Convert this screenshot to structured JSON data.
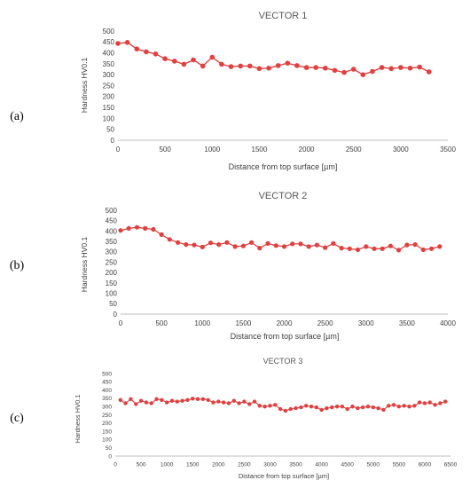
{
  "chart_data": [
    {
      "type": "line",
      "panel_label": "(a)",
      "title": "VECTOR 1",
      "xlabel": "Distance from top surface [µm]",
      "ylabel": "Hardness HV0.1",
      "xlim": [
        0,
        3500
      ],
      "ylim": [
        0,
        500
      ],
      "xticks": [
        0,
        500,
        1000,
        1500,
        2000,
        2500,
        3000,
        3500
      ],
      "yticks": [
        0,
        50,
        100,
        150,
        200,
        250,
        300,
        350,
        400,
        450,
        500
      ],
      "grid": false,
      "color": "#e04040",
      "series": [
        {
          "x": [
            0,
            100,
            200,
            300,
            400,
            500,
            600,
            700,
            800,
            900,
            1000,
            1100,
            1200,
            1300,
            1400,
            1500,
            1600,
            1700,
            1800,
            1900,
            2000,
            2100,
            2200,
            2300,
            2400,
            2500,
            2600,
            2700,
            2800,
            2900,
            3000,
            3100,
            3200,
            3300
          ],
          "y": [
            443,
            448,
            418,
            405,
            395,
            373,
            362,
            348,
            368,
            340,
            380,
            348,
            337,
            340,
            340,
            328,
            330,
            342,
            353,
            342,
            333,
            333,
            330,
            320,
            310,
            325,
            300,
            315,
            333,
            328,
            333,
            330,
            335,
            313
          ]
        }
      ]
    },
    {
      "type": "line",
      "panel_label": "(b)",
      "title": "VECTOR 2",
      "xlabel": "Distance from top surface [µm]",
      "ylabel": "Hardness HV0.1",
      "xlim": [
        0,
        4000
      ],
      "ylim": [
        0,
        500
      ],
      "xticks": [
        0,
        500,
        1000,
        1500,
        2000,
        2500,
        3000,
        3500,
        4000
      ],
      "yticks": [
        0,
        50,
        100,
        150,
        200,
        250,
        300,
        350,
        400,
        450,
        500
      ],
      "grid": false,
      "color": "#e04040",
      "series": [
        {
          "x": [
            0,
            100,
            200,
            300,
            400,
            500,
            600,
            700,
            800,
            900,
            1000,
            1100,
            1200,
            1300,
            1400,
            1500,
            1600,
            1700,
            1800,
            1900,
            2000,
            2100,
            2200,
            2300,
            2400,
            2500,
            2600,
            2700,
            2800,
            2900,
            3000,
            3100,
            3200,
            3300,
            3400,
            3500,
            3600,
            3700,
            3800,
            3900
          ],
          "y": [
            403,
            413,
            418,
            413,
            408,
            383,
            360,
            345,
            335,
            333,
            323,
            343,
            335,
            345,
            325,
            328,
            345,
            318,
            340,
            330,
            325,
            338,
            338,
            325,
            333,
            320,
            340,
            318,
            315,
            310,
            325,
            315,
            315,
            328,
            308,
            333,
            335,
            310,
            315,
            325
          ]
        }
      ]
    },
    {
      "type": "line",
      "panel_label": "(c)",
      "title": "VECTOR 3",
      "xlabel": "Distance from top surface [µm]",
      "ylabel": "Hardness HV0.1",
      "xlim": [
        0,
        6500
      ],
      "ylim": [
        0,
        500
      ],
      "xticks": [
        0,
        500,
        1000,
        1500,
        2000,
        2500,
        3000,
        3500,
        4000,
        4500,
        5000,
        5500,
        6000,
        6500
      ],
      "yticks": [
        0,
        50,
        100,
        150,
        200,
        250,
        300,
        350,
        400,
        450,
        500
      ],
      "grid": false,
      "color": "#e04040",
      "series": [
        {
          "x": [
            100,
            200,
            300,
            400,
            500,
            600,
            700,
            800,
            900,
            1000,
            1100,
            1200,
            1300,
            1400,
            1500,
            1600,
            1700,
            1800,
            1900,
            2000,
            2100,
            2200,
            2300,
            2400,
            2500,
            2600,
            2700,
            2800,
            2900,
            3000,
            3100,
            3200,
            3300,
            3400,
            3500,
            3600,
            3700,
            3800,
            3900,
            4000,
            4100,
            4200,
            4300,
            4400,
            4500,
            4600,
            4700,
            4800,
            4900,
            5000,
            5100,
            5200,
            5300,
            5400,
            5500,
            5600,
            5700,
            5800,
            5900,
            6000,
            6100,
            6200,
            6300,
            6400
          ],
          "y": [
            340,
            320,
            345,
            315,
            335,
            325,
            320,
            345,
            340,
            325,
            335,
            330,
            335,
            340,
            348,
            345,
            345,
            340,
            325,
            330,
            325,
            320,
            335,
            320,
            330,
            315,
            330,
            305,
            300,
            305,
            310,
            285,
            275,
            285,
            290,
            295,
            305,
            300,
            295,
            280,
            290,
            295,
            300,
            300,
            285,
            300,
            290,
            295,
            300,
            295,
            290,
            280,
            305,
            310,
            300,
            305,
            300,
            305,
            325,
            320,
            325,
            310,
            320,
            330
          ]
        }
      ]
    }
  ]
}
